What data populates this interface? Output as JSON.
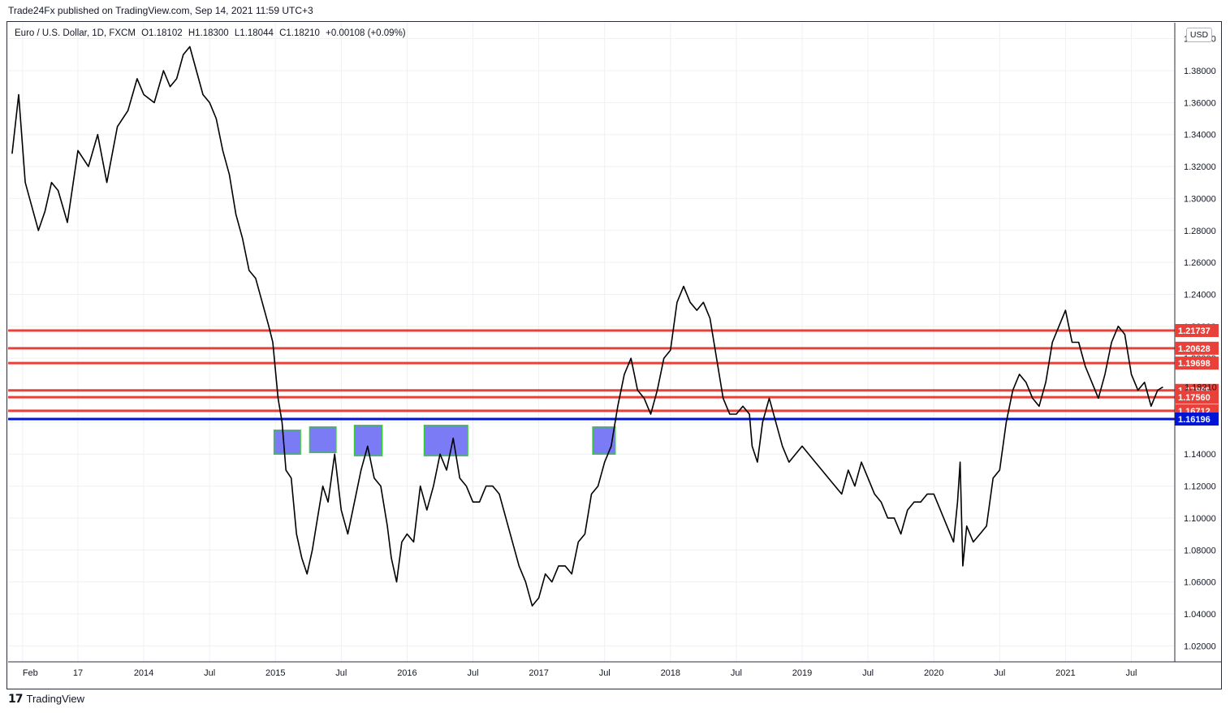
{
  "header": {
    "published_by": "Trade24Fx published on TradingView.com, Sep 14, 2021 11:59 UTC+3"
  },
  "symbol": {
    "name": "Euro / U.S. Dollar, 1D, FXCM",
    "open": "O1.18102",
    "high": "H1.18300",
    "low": "L1.18044",
    "close": "C1.18210",
    "change": "+0.00108 (+0.09%)"
  },
  "currency_badge": "USD",
  "footer": {
    "brand": "TradingView",
    "logo": "tradingview-logo"
  },
  "colors": {
    "price_line": "#000000",
    "resistance": "#e8413a",
    "support": "#0014d6",
    "current_price": "#131722",
    "zone_fill": "#7b7cf5",
    "zone_border": "#33cc33",
    "grid": "#eef0f3"
  },
  "chart_data": {
    "type": "line",
    "symbol": "EURUSD",
    "timeframe": "1D",
    "ylim": [
      1.01,
      1.41
    ],
    "y_ticks": [
      "1.40000",
      "1.38000",
      "1.36000",
      "1.34000",
      "1.32000",
      "1.30000",
      "1.28000",
      "1.26000",
      "1.24000",
      "1.22000",
      "1.20000",
      "1.18000",
      "1.16000",
      "1.14000",
      "1.12000",
      "1.10000",
      "1.08000",
      "1.06000",
      "1.04000",
      "1.02000"
    ],
    "x_tick_labels": [
      {
        "t": 2013.08,
        "label": "Feb"
      },
      {
        "t": 2013.5,
        "label": "17"
      },
      {
        "t": 2014.0,
        "label": "2014"
      },
      {
        "t": 2014.5,
        "label": "Jul"
      },
      {
        "t": 2015.0,
        "label": "2015"
      },
      {
        "t": 2015.5,
        "label": "Jul"
      },
      {
        "t": 2016.0,
        "label": "2016"
      },
      {
        "t": 2016.5,
        "label": "Jul"
      },
      {
        "t": 2017.0,
        "label": "2017"
      },
      {
        "t": 2017.5,
        "label": "Jul"
      },
      {
        "t": 2018.0,
        "label": "2018"
      },
      {
        "t": 2018.5,
        "label": "Jul"
      },
      {
        "t": 2019.0,
        "label": "2019"
      },
      {
        "t": 2019.5,
        "label": "Jul"
      },
      {
        "t": 2020.0,
        "label": "2020"
      },
      {
        "t": 2020.5,
        "label": "Jul"
      },
      {
        "t": 2021.0,
        "label": "2021"
      },
      {
        "t": 2021.5,
        "label": "Jul"
      }
    ],
    "xlim": [
      2012.97,
      2021.83
    ],
    "series": [
      {
        "points": [
          [
            2013.0,
            1.328
          ],
          [
            2013.05,
            1.365
          ],
          [
            2013.1,
            1.31
          ],
          [
            2013.15,
            1.295
          ],
          [
            2013.2,
            1.28
          ],
          [
            2013.25,
            1.292
          ],
          [
            2013.3,
            1.31
          ],
          [
            2013.35,
            1.305
          ],
          [
            2013.42,
            1.285
          ],
          [
            2013.5,
            1.33
          ],
          [
            2013.58,
            1.32
          ],
          [
            2013.65,
            1.34
          ],
          [
            2013.72,
            1.31
          ],
          [
            2013.8,
            1.345
          ],
          [
            2013.88,
            1.355
          ],
          [
            2013.95,
            1.375
          ],
          [
            2014.0,
            1.365
          ],
          [
            2014.08,
            1.36
          ],
          [
            2014.15,
            1.38
          ],
          [
            2014.2,
            1.37
          ],
          [
            2014.25,
            1.375
          ],
          [
            2014.3,
            1.39
          ],
          [
            2014.35,
            1.395
          ],
          [
            2014.4,
            1.38
          ],
          [
            2014.45,
            1.365
          ],
          [
            2014.5,
            1.36
          ],
          [
            2014.55,
            1.35
          ],
          [
            2014.6,
            1.33
          ],
          [
            2014.65,
            1.315
          ],
          [
            2014.7,
            1.29
          ],
          [
            2014.75,
            1.275
          ],
          [
            2014.8,
            1.255
          ],
          [
            2014.85,
            1.25
          ],
          [
            2014.9,
            1.235
          ],
          [
            2014.95,
            1.22
          ],
          [
            2014.98,
            1.21
          ],
          [
            2015.02,
            1.175
          ],
          [
            2015.05,
            1.16
          ],
          [
            2015.08,
            1.13
          ],
          [
            2015.12,
            1.125
          ],
          [
            2015.16,
            1.09
          ],
          [
            2015.2,
            1.075
          ],
          [
            2015.24,
            1.065
          ],
          [
            2015.28,
            1.08
          ],
          [
            2015.32,
            1.1
          ],
          [
            2015.36,
            1.12
          ],
          [
            2015.4,
            1.11
          ],
          [
            2015.45,
            1.14
          ],
          [
            2015.5,
            1.105
          ],
          [
            2015.55,
            1.09
          ],
          [
            2015.6,
            1.11
          ],
          [
            2015.65,
            1.13
          ],
          [
            2015.7,
            1.145
          ],
          [
            2015.75,
            1.125
          ],
          [
            2015.8,
            1.12
          ],
          [
            2015.85,
            1.095
          ],
          [
            2015.88,
            1.075
          ],
          [
            2015.92,
            1.06
          ],
          [
            2015.96,
            1.085
          ],
          [
            2016.0,
            1.09
          ],
          [
            2016.05,
            1.085
          ],
          [
            2016.1,
            1.12
          ],
          [
            2016.15,
            1.105
          ],
          [
            2016.2,
            1.12
          ],
          [
            2016.25,
            1.14
          ],
          [
            2016.3,
            1.13
          ],
          [
            2016.35,
            1.15
          ],
          [
            2016.4,
            1.125
          ],
          [
            2016.45,
            1.12
          ],
          [
            2016.5,
            1.11
          ],
          [
            2016.55,
            1.11
          ],
          [
            2016.6,
            1.12
          ],
          [
            2016.65,
            1.12
          ],
          [
            2016.7,
            1.115
          ],
          [
            2016.75,
            1.1
          ],
          [
            2016.8,
            1.085
          ],
          [
            2016.85,
            1.07
          ],
          [
            2016.9,
            1.06
          ],
          [
            2016.95,
            1.045
          ],
          [
            2017.0,
            1.05
          ],
          [
            2017.05,
            1.065
          ],
          [
            2017.1,
            1.06
          ],
          [
            2017.15,
            1.07
          ],
          [
            2017.2,
            1.07
          ],
          [
            2017.25,
            1.065
          ],
          [
            2017.3,
            1.085
          ],
          [
            2017.35,
            1.09
          ],
          [
            2017.4,
            1.115
          ],
          [
            2017.45,
            1.12
          ],
          [
            2017.5,
            1.135
          ],
          [
            2017.55,
            1.145
          ],
          [
            2017.6,
            1.17
          ],
          [
            2017.65,
            1.19
          ],
          [
            2017.7,
            1.2
          ],
          [
            2017.75,
            1.18
          ],
          [
            2017.8,
            1.175
          ],
          [
            2017.85,
            1.165
          ],
          [
            2017.9,
            1.18
          ],
          [
            2017.95,
            1.2
          ],
          [
            2018.0,
            1.205
          ],
          [
            2018.05,
            1.235
          ],
          [
            2018.1,
            1.245
          ],
          [
            2018.15,
            1.235
          ],
          [
            2018.2,
            1.23
          ],
          [
            2018.25,
            1.235
          ],
          [
            2018.3,
            1.225
          ],
          [
            2018.35,
            1.2
          ],
          [
            2018.4,
            1.175
          ],
          [
            2018.45,
            1.165
          ],
          [
            2018.5,
            1.165
          ],
          [
            2018.55,
            1.17
          ],
          [
            2018.6,
            1.165
          ],
          [
            2018.62,
            1.145
          ],
          [
            2018.66,
            1.135
          ],
          [
            2018.7,
            1.16
          ],
          [
            2018.75,
            1.175
          ],
          [
            2018.8,
            1.16
          ],
          [
            2018.85,
            1.145
          ],
          [
            2018.9,
            1.135
          ],
          [
            2018.95,
            1.14
          ],
          [
            2019.0,
            1.145
          ],
          [
            2019.05,
            1.14
          ],
          [
            2019.1,
            1.135
          ],
          [
            2019.15,
            1.13
          ],
          [
            2019.2,
            1.125
          ],
          [
            2019.25,
            1.12
          ],
          [
            2019.3,
            1.115
          ],
          [
            2019.35,
            1.13
          ],
          [
            2019.4,
            1.12
          ],
          [
            2019.45,
            1.135
          ],
          [
            2019.5,
            1.125
          ],
          [
            2019.55,
            1.115
          ],
          [
            2019.6,
            1.11
          ],
          [
            2019.65,
            1.1
          ],
          [
            2019.7,
            1.1
          ],
          [
            2019.75,
            1.09
          ],
          [
            2019.8,
            1.105
          ],
          [
            2019.85,
            1.11
          ],
          [
            2019.9,
            1.11
          ],
          [
            2019.95,
            1.115
          ],
          [
            2020.0,
            1.115
          ],
          [
            2020.05,
            1.105
          ],
          [
            2020.1,
            1.095
          ],
          [
            2020.15,
            1.085
          ],
          [
            2020.18,
            1.11
          ],
          [
            2020.2,
            1.135
          ],
          [
            2020.22,
            1.07
          ],
          [
            2020.25,
            1.095
          ],
          [
            2020.3,
            1.085
          ],
          [
            2020.35,
            1.09
          ],
          [
            2020.4,
            1.095
          ],
          [
            2020.45,
            1.125
          ],
          [
            2020.5,
            1.13
          ],
          [
            2020.55,
            1.16
          ],
          [
            2020.6,
            1.18
          ],
          [
            2020.65,
            1.19
          ],
          [
            2020.7,
            1.185
          ],
          [
            2020.75,
            1.175
          ],
          [
            2020.8,
            1.17
          ],
          [
            2020.85,
            1.185
          ],
          [
            2020.9,
            1.21
          ],
          [
            2020.95,
            1.22
          ],
          [
            2021.0,
            1.23
          ],
          [
            2021.05,
            1.21
          ],
          [
            2021.1,
            1.21
          ],
          [
            2021.15,
            1.195
          ],
          [
            2021.2,
            1.185
          ],
          [
            2021.25,
            1.175
          ],
          [
            2021.3,
            1.19
          ],
          [
            2021.35,
            1.21
          ],
          [
            2021.4,
            1.22
          ],
          [
            2021.45,
            1.215
          ],
          [
            2021.5,
            1.19
          ],
          [
            2021.55,
            1.18
          ],
          [
            2021.6,
            1.185
          ],
          [
            2021.65,
            1.17
          ],
          [
            2021.7,
            1.18
          ],
          [
            2021.74,
            1.182
          ]
        ]
      }
    ],
    "resistance_levels": [
      {
        "price": 1.21737,
        "label": "1.21737"
      },
      {
        "price": 1.20628,
        "label": "1.20628"
      },
      {
        "price": 1.19698,
        "label": "1.19698"
      },
      {
        "price": 1.17989,
        "label": "1.17989"
      },
      {
        "price": 1.1756,
        "label": "1.17560"
      },
      {
        "price": 1.16712,
        "label": "1.16712"
      }
    ],
    "support_levels": [
      {
        "price": 1.16196,
        "label": "1.16196"
      }
    ],
    "current_price": {
      "price": 1.1821,
      "label": "1.18210"
    },
    "extra_line": {
      "price": 1.1821
    },
    "zones": [
      {
        "t0": 2014.99,
        "t1": 2015.19,
        "p0": 1.14,
        "p1": 1.155
      },
      {
        "t0": 2015.26,
        "t1": 2015.46,
        "p0": 1.141,
        "p1": 1.157
      },
      {
        "t0": 2015.6,
        "t1": 2015.81,
        "p0": 1.139,
        "p1": 1.158
      },
      {
        "t0": 2016.13,
        "t1": 2016.46,
        "p0": 1.139,
        "p1": 1.158
      },
      {
        "t0": 2017.41,
        "t1": 2017.58,
        "p0": 1.14,
        "p1": 1.157
      }
    ]
  }
}
